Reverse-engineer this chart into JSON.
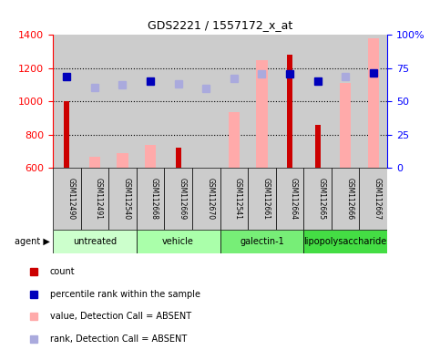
{
  "title": "GDS2221 / 1557172_x_at",
  "samples": [
    "GSM112490",
    "GSM112491",
    "GSM112540",
    "GSM112668",
    "GSM112669",
    "GSM112670",
    "GSM112541",
    "GSM112661",
    "GSM112664",
    "GSM112665",
    "GSM112666",
    "GSM112667"
  ],
  "agents": [
    {
      "label": "untreated",
      "start": 0,
      "end": 3,
      "color": "#ccffcc"
    },
    {
      "label": "vehicle",
      "start": 3,
      "end": 6,
      "color": "#aaffaa"
    },
    {
      "label": "galectin-1",
      "start": 6,
      "end": 9,
      "color": "#77ee77"
    },
    {
      "label": "lipopolysaccharide",
      "start": 9,
      "end": 12,
      "color": "#44dd44"
    }
  ],
  "count_values": [
    1000,
    null,
    null,
    null,
    720,
    null,
    null,
    null,
    1280,
    860,
    null,
    null
  ],
  "count_color": "#cc0000",
  "absent_value_values": [
    null,
    670,
    690,
    740,
    null,
    null,
    935,
    1250,
    null,
    null,
    1110,
    1380
  ],
  "absent_value_color": "#ffaaaa",
  "percentile_rank_values": [
    1150,
    null,
    null,
    1120,
    null,
    null,
    null,
    null,
    1165,
    1120,
    null,
    1170
  ],
  "percentile_rank_color": "#0000bb",
  "absent_rank_values": [
    null,
    1085,
    1100,
    null,
    1105,
    1080,
    1140,
    1165,
    null,
    null,
    1150,
    null
  ],
  "absent_rank_color": "#aaaadd",
  "ylim_left": [
    600,
    1400
  ],
  "ylim_right": [
    0,
    100
  ],
  "yticks_left": [
    600,
    800,
    1000,
    1200,
    1400
  ],
  "yticks_right": [
    0,
    25,
    50,
    75,
    100
  ],
  "ytick_right_labels": [
    "0",
    "25",
    "50",
    "75",
    "100%"
  ],
  "grid_values": [
    800,
    1000,
    1200
  ],
  "absent_bar_width": 0.4,
  "count_bar_width": 0.2,
  "marker_size": 6,
  "col_bg_color": "#cccccc",
  "plot_bg_color": "#ffffff",
  "legend_labels": [
    "count",
    "percentile rank within the sample",
    "value, Detection Call = ABSENT",
    "rank, Detection Call = ABSENT"
  ],
  "legend_colors": [
    "#cc0000",
    "#0000bb",
    "#ffaaaa",
    "#aaaadd"
  ]
}
